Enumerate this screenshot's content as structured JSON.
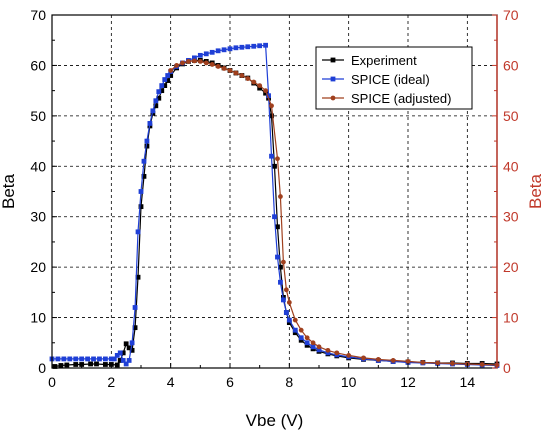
{
  "chart_data": {
    "type": "line",
    "xlabel": "Vbe (V)",
    "ylabel": "Beta",
    "ylabel_right": "Beta",
    "xlim": [
      0,
      15
    ],
    "ylim": [
      0,
      70
    ],
    "x_ticks": [
      "0",
      "2",
      "4",
      "6",
      "8",
      "10",
      "12",
      "14"
    ],
    "y_ticks": [
      "0",
      "10",
      "20",
      "30",
      "40",
      "50",
      "60",
      "70"
    ],
    "grid": "dashed vertical and horizontal",
    "legend_position": "top-right",
    "right_axis_color": "#c0392b",
    "series": [
      {
        "name": "Experiment",
        "color": "#000000",
        "marker": "square",
        "points": [
          [
            0.1,
            0.3
          ],
          [
            0.3,
            0.5
          ],
          [
            0.5,
            0.6
          ],
          [
            0.8,
            0.7
          ],
          [
            1.0,
            0.7
          ],
          [
            1.3,
            0.8
          ],
          [
            1.5,
            0.8
          ],
          [
            1.8,
            0.7
          ],
          [
            2.0,
            0.7
          ],
          [
            2.2,
            0.6
          ],
          [
            2.3,
            1.5
          ],
          [
            2.4,
            3.0
          ],
          [
            2.5,
            4.8
          ],
          [
            2.6,
            4.0
          ],
          [
            2.7,
            3.5
          ],
          [
            2.8,
            8.0
          ],
          [
            2.9,
            18.0
          ],
          [
            3.0,
            32.0
          ],
          [
            3.1,
            38.0
          ],
          [
            3.2,
            44.0
          ],
          [
            3.3,
            48.0
          ],
          [
            3.4,
            50.5
          ],
          [
            3.5,
            52.0
          ],
          [
            3.6,
            53.5
          ],
          [
            3.7,
            55.0
          ],
          [
            3.8,
            56.0
          ],
          [
            3.9,
            57.0
          ],
          [
            4.0,
            58.0
          ],
          [
            4.2,
            59.5
          ],
          [
            4.4,
            60.3
          ],
          [
            4.6,
            60.8
          ],
          [
            4.8,
            61.0
          ],
          [
            5.0,
            61.0
          ],
          [
            5.2,
            60.8
          ],
          [
            5.4,
            60.5
          ],
          [
            5.6,
            60.0
          ],
          [
            5.8,
            59.5
          ],
          [
            6.0,
            59.0
          ],
          [
            6.2,
            58.5
          ],
          [
            6.4,
            58.0
          ],
          [
            6.6,
            57.5
          ],
          [
            6.8,
            56.5
          ],
          [
            7.0,
            55.5
          ],
          [
            7.2,
            54.5
          ],
          [
            7.3,
            53.5
          ],
          [
            7.4,
            50.0
          ],
          [
            7.5,
            40.0
          ],
          [
            7.6,
            28.0
          ],
          [
            7.7,
            20.0
          ],
          [
            7.8,
            14.0
          ],
          [
            7.9,
            11.0
          ],
          [
            8.0,
            9.0
          ],
          [
            8.2,
            7.0
          ],
          [
            8.4,
            5.5
          ],
          [
            8.6,
            4.5
          ],
          [
            8.8,
            3.8
          ],
          [
            9.0,
            3.3
          ],
          [
            9.3,
            2.8
          ],
          [
            9.6,
            2.4
          ],
          [
            10.0,
            2.0
          ],
          [
            10.5,
            1.7
          ],
          [
            11.0,
            1.5
          ],
          [
            11.5,
            1.3
          ],
          [
            12.0,
            1.2
          ],
          [
            12.5,
            1.1
          ],
          [
            13.0,
            1.0
          ],
          [
            13.5,
            1.0
          ],
          [
            14.0,
            0.9
          ],
          [
            14.5,
            0.9
          ],
          [
            15.0,
            0.8
          ]
        ]
      },
      {
        "name": "SPICE (ideal)",
        "color": "#1f3fd6",
        "marker": "square",
        "points": [
          [
            0.0,
            1.8
          ],
          [
            0.2,
            1.8
          ],
          [
            0.4,
            1.8
          ],
          [
            0.6,
            1.8
          ],
          [
            0.8,
            1.8
          ],
          [
            1.0,
            1.8
          ],
          [
            1.2,
            1.8
          ],
          [
            1.4,
            1.8
          ],
          [
            1.6,
            1.8
          ],
          [
            1.8,
            1.8
          ],
          [
            2.0,
            1.8
          ],
          [
            2.1,
            1.8
          ],
          [
            2.2,
            2.5
          ],
          [
            2.3,
            3.0
          ],
          [
            2.4,
            1.5
          ],
          [
            2.5,
            0.8
          ],
          [
            2.6,
            1.5
          ],
          [
            2.7,
            5.0
          ],
          [
            2.8,
            12.0
          ],
          [
            2.9,
            27.0
          ],
          [
            3.0,
            35.0
          ],
          [
            3.1,
            41.0
          ],
          [
            3.2,
            45.0
          ],
          [
            3.3,
            48.5
          ],
          [
            3.4,
            51.0
          ],
          [
            3.5,
            53.0
          ],
          [
            3.6,
            54.8
          ],
          [
            3.7,
            56.0
          ],
          [
            3.8,
            57.2
          ],
          [
            3.9,
            58.0
          ],
          [
            4.0,
            58.8
          ],
          [
            4.2,
            59.8
          ],
          [
            4.4,
            60.5
          ],
          [
            4.6,
            61.0
          ],
          [
            4.8,
            61.5
          ],
          [
            5.0,
            62.0
          ],
          [
            5.2,
            62.3
          ],
          [
            5.4,
            62.6
          ],
          [
            5.6,
            62.9
          ],
          [
            5.8,
            63.1
          ],
          [
            6.0,
            63.3
          ],
          [
            6.2,
            63.5
          ],
          [
            6.4,
            63.6
          ],
          [
            6.6,
            63.7
          ],
          [
            6.8,
            63.8
          ],
          [
            7.0,
            63.9
          ],
          [
            7.2,
            64.0
          ],
          [
            7.3,
            54.0
          ],
          [
            7.4,
            42.0
          ],
          [
            7.5,
            30.0
          ],
          [
            7.6,
            22.0
          ],
          [
            7.7,
            17.0
          ],
          [
            7.8,
            13.5
          ],
          [
            7.9,
            11.0
          ],
          [
            8.0,
            9.5
          ],
          [
            8.2,
            7.5
          ],
          [
            8.4,
            6.0
          ],
          [
            8.6,
            5.0
          ],
          [
            8.8,
            4.2
          ],
          [
            9.0,
            3.6
          ],
          [
            9.3,
            3.0
          ],
          [
            9.6,
            2.6
          ],
          [
            10.0,
            2.2
          ],
          [
            10.5,
            1.8
          ],
          [
            11.0,
            1.5
          ],
          [
            11.5,
            1.3
          ],
          [
            12.0,
            1.1
          ],
          [
            12.5,
            1.0
          ],
          [
            13.0,
            0.9
          ],
          [
            13.5,
            0.8
          ],
          [
            14.0,
            0.7
          ],
          [
            14.5,
            0.6
          ],
          [
            15.0,
            0.5
          ]
        ]
      },
      {
        "name": "SPICE (adjusted)",
        "color": "#a0401e",
        "marker": "circle",
        "points": [
          [
            4.0,
            59.0
          ],
          [
            4.2,
            60.0
          ],
          [
            4.4,
            60.5
          ],
          [
            4.6,
            60.8
          ],
          [
            4.8,
            60.9
          ],
          [
            5.0,
            60.8
          ],
          [
            5.2,
            60.5
          ],
          [
            5.4,
            60.2
          ],
          [
            5.6,
            59.8
          ],
          [
            5.8,
            59.4
          ],
          [
            6.0,
            59.0
          ],
          [
            6.2,
            58.5
          ],
          [
            6.4,
            58.0
          ],
          [
            6.6,
            57.4
          ],
          [
            6.8,
            56.7
          ],
          [
            7.0,
            56.0
          ],
          [
            7.2,
            55.0
          ],
          [
            7.4,
            52.0
          ],
          [
            7.6,
            41.5
          ],
          [
            7.7,
            34.0
          ],
          [
            7.8,
            21.0
          ],
          [
            7.9,
            15.5
          ],
          [
            8.0,
            13.0
          ],
          [
            8.2,
            9.5
          ],
          [
            8.4,
            7.5
          ],
          [
            8.6,
            6.0
          ],
          [
            8.8,
            5.0
          ],
          [
            9.0,
            4.2
          ],
          [
            9.3,
            3.5
          ],
          [
            9.6,
            3.0
          ],
          [
            10.0,
            2.5
          ],
          [
            10.5,
            2.0
          ],
          [
            11.0,
            1.7
          ],
          [
            11.5,
            1.5
          ],
          [
            12.0,
            1.3
          ],
          [
            12.5,
            1.1
          ],
          [
            13.0,
            1.0
          ],
          [
            13.5,
            0.9
          ],
          [
            14.0,
            0.8
          ],
          [
            14.5,
            0.7
          ],
          [
            15.0,
            0.6
          ]
        ]
      }
    ]
  }
}
